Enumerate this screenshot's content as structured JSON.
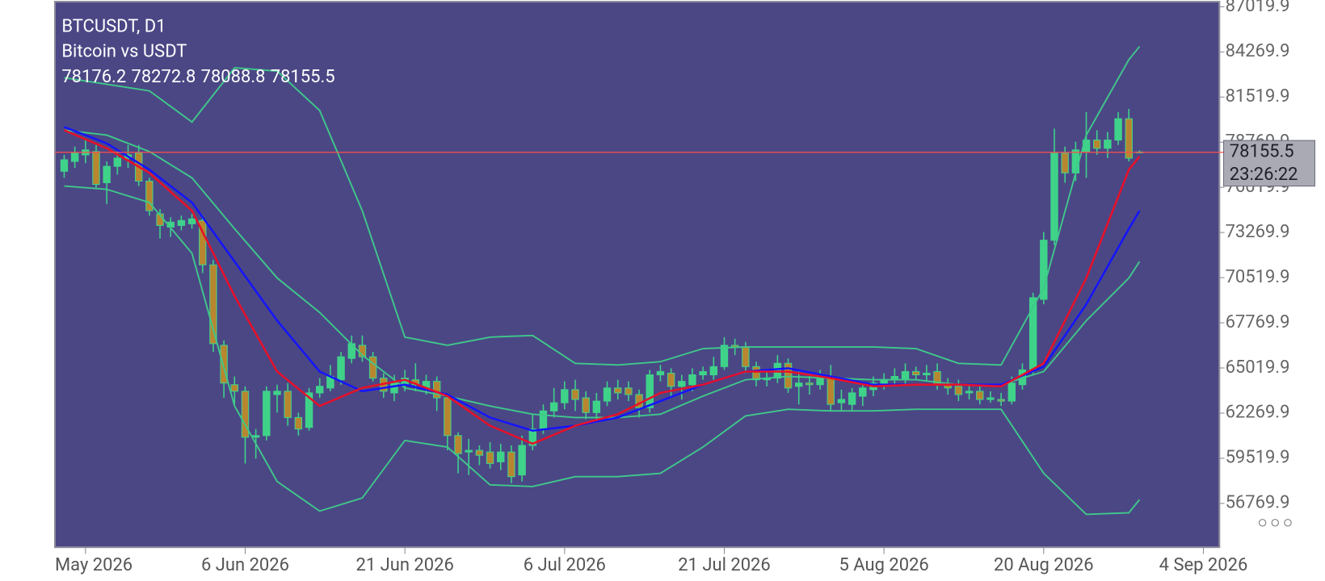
{
  "chart_data": {
    "type": "candlestick",
    "title": "BTCUSDT, D1",
    "subtitle": "Bitcoin vs USDT",
    "countdown": "23:26:22",
    "background": "#4b4785",
    "up_color": "#3fd38a",
    "down_color": "#b8862f",
    "wick_color": "#3fd38a",
    "price_line_color": "#ff4d4d",
    "xlim": [
      -0.87,
      108.5
    ],
    "xticks": [
      {
        "value": 2,
        "label": "May 2026"
      },
      {
        "value": 17,
        "label": "6 Jun 2026"
      },
      {
        "value": 32,
        "label": "21 Jun 2026"
      },
      {
        "value": 47,
        "label": "6 Jul 2026"
      },
      {
        "value": 62,
        "label": "21 Jul 2026"
      },
      {
        "value": 77,
        "label": "5 Aug 2026"
      },
      {
        "value": 92,
        "label": "20 Aug 2026"
      },
      {
        "value": 107,
        "label": "4 Sep 2026"
      }
    ],
    "ylim": [
      54100,
      87330
    ],
    "yticks": [
      87019.9,
      84269.9,
      81519.9,
      78769.9,
      76019.9,
      73269.9,
      70519.9,
      67769.9,
      65019.9,
      62269.9,
      59519.9,
      56769.9
    ],
    "open": [
      77000,
      77600,
      78000,
      78200,
      76300,
      77300,
      77800,
      78100,
      76400,
      74400,
      73600,
      73700,
      73800,
      74000,
      71300,
      66400,
      64000,
      63600,
      60800,
      60900,
      63400,
      63600,
      62000,
      61400,
      63500,
      63800,
      64300,
      65600,
      66400,
      65700,
      64400,
      63500,
      64000,
      64300,
      63800,
      64200,
      63200,
      60900,
      59900,
      60000,
      59900,
      59300,
      59900,
      58500,
      60300,
      61300,
      62400,
      62900,
      63700,
      63200,
      62300,
      63000,
      63800,
      63800,
      63400,
      62600,
      64600,
      64700,
      63900,
      64000,
      64600,
      64600,
      65100,
      66400,
      66300,
      65100,
      64300,
      64400,
      65300,
      63900,
      64100,
      64000,
      64500,
      62900,
      62800,
      63300,
      63700,
      64000,
      64300,
      64300,
      64800,
      64600,
      64800,
      64000,
      63900,
      63500,
      63600,
      63100,
      63100,
      63000,
      64000,
      64900,
      69200,
      72800,
      78100,
      76900,
      78200,
      78900,
      78400,
      78900,
      80200,
      78176.2
    ],
    "high": [
      78000,
      78500,
      78900,
      78600,
      77600,
      78200,
      78600,
      78600,
      76600,
      74700,
      74200,
      74300,
      74400,
      74300,
      71600,
      66700,
      64500,
      63900,
      61300,
      63900,
      64000,
      64100,
      62300,
      63800,
      64400,
      65200,
      66000,
      67000,
      67000,
      66000,
      64700,
      64600,
      64900,
      65300,
      64600,
      64500,
      63400,
      61100,
      60700,
      60300,
      60500,
      60400,
      60300,
      60900,
      62200,
      62800,
      63800,
      64200,
      64300,
      63600,
      63500,
      64200,
      64300,
      64200,
      63700,
      64900,
      65200,
      65000,
      64600,
      65000,
      65100,
      65700,
      66900,
      66800,
      66600,
      65400,
      64900,
      65800,
      65600,
      64800,
      64600,
      64900,
      65200,
      63700,
      63800,
      64200,
      64500,
      64700,
      65000,
      65300,
      65100,
      65200,
      65300,
      64400,
      64300,
      64000,
      63900,
      63600,
      63500,
      64500,
      65300,
      69600,
      73300,
      79600,
      78500,
      78800,
      80600,
      79500,
      79400,
      80600,
      80800,
      78272.8
    ],
    "low": [
      76600,
      77200,
      77500,
      76000,
      75000,
      76800,
      77200,
      76100,
      74300,
      72900,
      73000,
      73400,
      73500,
      70800,
      66000,
      63200,
      62800,
      59200,
      59500,
      60600,
      62300,
      61500,
      60900,
      61200,
      63200,
      63600,
      64000,
      65300,
      65400,
      64200,
      63200,
      63000,
      63600,
      63600,
      63400,
      62400,
      60000,
      58600,
      58500,
      59100,
      58900,
      58800,
      58000,
      58100,
      60000,
      61000,
      62000,
      62500,
      62400,
      61900,
      61800,
      62700,
      63100,
      63000,
      62000,
      62300,
      64200,
      63300,
      63100,
      63600,
      64300,
      64300,
      64900,
      65800,
      64700,
      63900,
      63900,
      64100,
      63500,
      62800,
      63400,
      63700,
      62400,
      62400,
      62400,
      62700,
      63300,
      63700,
      64000,
      64000,
      64300,
      64200,
      63700,
      63400,
      63000,
      63100,
      62800,
      62900,
      62700,
      62800,
      63700,
      64600,
      68900,
      72500,
      76300,
      76400,
      76600,
      78000,
      77800,
      78600,
      77600,
      78088.8
    ],
    "close": [
      77700,
      78100,
      78300,
      76200,
      77300,
      77800,
      78000,
      76400,
      74600,
      73700,
      73900,
      74000,
      74100,
      71300,
      66500,
      64100,
      63600,
      60800,
      60900,
      63600,
      63600,
      62000,
      61300,
      63500,
      63900,
      64500,
      65700,
      66500,
      65700,
      64400,
      63600,
      64100,
      64400,
      64000,
      64200,
      63200,
      60900,
      59800,
      60000,
      59700,
      59200,
      59900,
      58400,
      60300,
      61300,
      62400,
      62900,
      63700,
      63100,
      62300,
      63000,
      63800,
      63500,
      63400,
      62600,
      64600,
      64800,
      63900,
      64200,
      64600,
      64800,
      65100,
      66400,
      66300,
      65100,
      64300,
      64400,
      65300,
      63800,
      64100,
      64000,
      64500,
      62800,
      63100,
      63500,
      63800,
      64100,
      64300,
      64500,
      64800,
      64600,
      64700,
      64000,
      63800,
      63400,
      63600,
      63100,
      63200,
      63000,
      64100,
      64900,
      69300,
      72800,
      78100,
      76900,
      78300,
      78900,
      78400,
      78900,
      80200,
      77800,
      78155.5
    ],
    "indicator_x": [
      0,
      4,
      8,
      12,
      16,
      20,
      24,
      28,
      32,
      36,
      40,
      44,
      48,
      52,
      56,
      60,
      64,
      68,
      72,
      76,
      80,
      84,
      88,
      92,
      96,
      100,
      101
    ],
    "indicators": [
      {
        "color": "#3fc98a",
        "values": [
          82700,
          82300,
          81900,
          80000,
          83300,
          83100,
          80700,
          74600,
          66900,
          66400,
          66900,
          67000,
          65300,
          65200,
          65400,
          66200,
          66300,
          66300,
          66300,
          66300,
          66200,
          65300,
          65200,
          69900,
          79200,
          83800,
          84600
        ]
      },
      {
        "color": "#3fc98a",
        "values": [
          79500,
          79200,
          78200,
          76600,
          73500,
          70500,
          68400,
          65800,
          63800,
          63300,
          62700,
          62200,
          62000,
          62000,
          62200,
          63300,
          64300,
          64500,
          64400,
          64300,
          64300,
          64000,
          64000,
          64800,
          67900,
          70500,
          71500
        ]
      },
      {
        "color": "#3fc98a",
        "values": [
          76100,
          75900,
          75100,
          72000,
          62700,
          58100,
          56300,
          57100,
          60600,
          60200,
          57900,
          57800,
          58400,
          58400,
          58600,
          60200,
          62100,
          62500,
          62400,
          62400,
          62500,
          62500,
          62500,
          58600,
          56100,
          56200,
          57000
        ]
      },
      {
        "color": "#1414ff",
        "values": [
          79700,
          78700,
          77100,
          75100,
          71500,
          67900,
          64800,
          63600,
          64000,
          63400,
          62000,
          61200,
          61500,
          62000,
          63000,
          64000,
          64800,
          65000,
          64500,
          64000,
          64000,
          64000,
          64000,
          65100,
          68900,
          73500,
          74600
        ]
      },
      {
        "color": "#e8102a",
        "values": [
          79500,
          78400,
          76900,
          74600,
          69400,
          64800,
          62700,
          63800,
          64300,
          63300,
          61500,
          60400,
          61500,
          62200,
          63500,
          64000,
          64800,
          64800,
          64400,
          63900,
          64000,
          64000,
          63900,
          65300,
          70500,
          77100,
          77900
        ]
      }
    ]
  }
}
